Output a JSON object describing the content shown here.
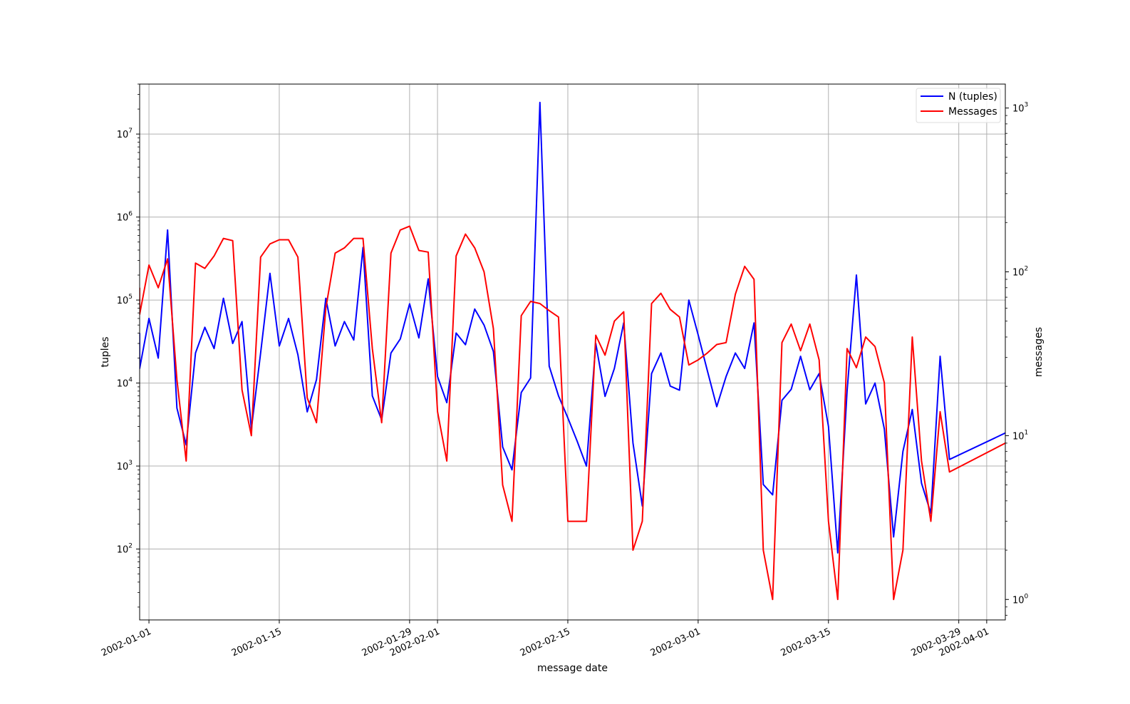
{
  "chart_data": {
    "type": "line",
    "xlabel": "message date",
    "ylabel": "tuples",
    "y2label": "messages",
    "y_scale": "log",
    "y2_scale": "log",
    "ylim": [
      14,
      40000000
    ],
    "y2lim": [
      0.75,
      1400
    ],
    "xlim": [
      "2001-12-31",
      "2002-04-03"
    ],
    "grid": true,
    "legend_position": "upper right",
    "x_ticks": [
      "2002-01-01",
      "2002-01-15",
      "2002-01-29",
      "2002-02-01",
      "2002-02-15",
      "2002-03-01",
      "2002-03-15",
      "2002-03-29",
      "2002-04-01"
    ],
    "y_ticks": [
      {
        "value": 100,
        "base": "10",
        "exp": "2"
      },
      {
        "value": 1000,
        "base": "10",
        "exp": "3"
      },
      {
        "value": 10000,
        "base": "10",
        "exp": "4"
      },
      {
        "value": 100000,
        "base": "10",
        "exp": "5"
      },
      {
        "value": 1000000,
        "base": "10",
        "exp": "6"
      },
      {
        "value": 10000000,
        "base": "10",
        "exp": "7"
      }
    ],
    "y2_ticks": [
      {
        "value": 1,
        "base": "10",
        "exp": "0"
      },
      {
        "value": 10,
        "base": "10",
        "exp": "1"
      },
      {
        "value": 100,
        "base": "10",
        "exp": "2"
      },
      {
        "value": 1000,
        "base": "10",
        "exp": "3"
      }
    ],
    "series": [
      {
        "name": "N (tuples)",
        "color": "#0000ff",
        "axis": "left",
        "points": [
          [
            "2001-12-31",
            40000
          ],
          [
            "2001-12-31",
            15000
          ],
          [
            "2002-01-01",
            60000
          ],
          [
            "2002-01-02",
            20000
          ],
          [
            "2002-01-03",
            700000
          ],
          [
            "2002-01-04",
            5000
          ],
          [
            "2002-01-05",
            1800
          ],
          [
            "2002-01-06",
            23000
          ],
          [
            "2002-01-07",
            47000
          ],
          [
            "2002-01-08",
            26000
          ],
          [
            "2002-01-09",
            105000
          ],
          [
            "2002-01-10",
            30000
          ],
          [
            "2002-01-11",
            55000
          ],
          [
            "2002-01-12",
            2800
          ],
          [
            "2002-01-13",
            23000
          ],
          [
            "2002-01-14",
            210000
          ],
          [
            "2002-01-15",
            28000
          ],
          [
            "2002-01-16",
            60000
          ],
          [
            "2002-01-17",
            22000
          ],
          [
            "2002-01-18",
            4500
          ],
          [
            "2002-01-19",
            11000
          ],
          [
            "2002-01-20",
            105000
          ],
          [
            "2002-01-21",
            28000
          ],
          [
            "2002-01-22",
            55000
          ],
          [
            "2002-01-23",
            33000
          ],
          [
            "2002-01-24",
            430000
          ],
          [
            "2002-01-25",
            7000
          ],
          [
            "2002-01-26",
            3600
          ],
          [
            "2002-01-27",
            23000
          ],
          [
            "2002-01-28",
            34000
          ],
          [
            "2002-01-29",
            90000
          ],
          [
            "2002-01-30",
            35000
          ],
          [
            "2002-01-31",
            180000
          ],
          [
            "2002-02-01",
            12000
          ],
          [
            "2002-02-02",
            5800
          ],
          [
            "2002-02-03",
            40000
          ],
          [
            "2002-02-04",
            29000
          ],
          [
            "2002-02-05",
            78000
          ],
          [
            "2002-02-06",
            50000
          ],
          [
            "2002-02-07",
            24000
          ],
          [
            "2002-02-08",
            1700
          ],
          [
            "2002-02-09",
            900
          ],
          [
            "2002-02-10",
            7700
          ],
          [
            "2002-02-11",
            11500
          ],
          [
            "2002-02-12",
            24000000
          ],
          [
            "2002-02-13",
            16000
          ],
          [
            "2002-02-14",
            7000
          ],
          [
            "2002-02-15",
            3800
          ],
          [
            "2002-02-16",
            2000
          ],
          [
            "2002-02-17",
            1000
          ],
          [
            "2002-02-18",
            30000
          ],
          [
            "2002-02-19",
            6900
          ],
          [
            "2002-02-20",
            15000
          ],
          [
            "2002-02-21",
            53000
          ],
          [
            "2002-02-22",
            1900
          ],
          [
            "2002-02-23",
            330
          ],
          [
            "2002-02-24",
            13000
          ],
          [
            "2002-02-25",
            23000
          ],
          [
            "2002-02-26",
            9200
          ],
          [
            "2002-02-27",
            8200
          ],
          [
            "2002-02-28",
            100000
          ],
          [
            "2002-03-01",
            38000
          ],
          [
            "2002-03-02",
            14000
          ],
          [
            "2002-03-03",
            5200
          ],
          [
            "2002-03-04",
            12000
          ],
          [
            "2002-03-05",
            23000
          ],
          [
            "2002-03-06",
            15000
          ],
          [
            "2002-03-07",
            53000
          ],
          [
            "2002-03-08",
            600
          ],
          [
            "2002-03-09",
            450
          ],
          [
            "2002-03-10",
            6200
          ],
          [
            "2002-03-11",
            8400
          ],
          [
            "2002-03-12",
            21000
          ],
          [
            "2002-03-13",
            8300
          ],
          [
            "2002-03-14",
            13000
          ],
          [
            "2002-03-15",
            3000
          ],
          [
            "2002-03-16",
            90
          ],
          [
            "2002-03-17",
            8000
          ],
          [
            "2002-03-18",
            200000
          ],
          [
            "2002-03-19",
            5600
          ],
          [
            "2002-03-20",
            10000
          ],
          [
            "2002-03-21",
            2800
          ],
          [
            "2002-03-22",
            140
          ],
          [
            "2002-03-23",
            1500
          ],
          [
            "2002-03-24",
            4800
          ],
          [
            "2002-03-25",
            620
          ],
          [
            "2002-03-26",
            270
          ],
          [
            "2002-03-27",
            21000
          ],
          [
            "2002-03-28",
            1200
          ],
          [
            "2002-04-03",
            2500
          ]
        ]
      },
      {
        "name": "Messages",
        "color": "#ff0000",
        "axis": "right",
        "points": [
          [
            "2001-12-31",
            80
          ],
          [
            "2001-12-31",
            55
          ],
          [
            "2002-01-01",
            110
          ],
          [
            "2002-01-02",
            80
          ],
          [
            "2002-01-03",
            120
          ],
          [
            "2002-01-04",
            22
          ],
          [
            "2002-01-05",
            7
          ],
          [
            "2002-01-06",
            113
          ],
          [
            "2002-01-07",
            105
          ],
          [
            "2002-01-08",
            125
          ],
          [
            "2002-01-09",
            160
          ],
          [
            "2002-01-10",
            155
          ],
          [
            "2002-01-11",
            19
          ],
          [
            "2002-01-12",
            10
          ],
          [
            "2002-01-13",
            123
          ],
          [
            "2002-01-14",
            148
          ],
          [
            "2002-01-15",
            157
          ],
          [
            "2002-01-16",
            157
          ],
          [
            "2002-01-17",
            123
          ],
          [
            "2002-01-18",
            17
          ],
          [
            "2002-01-19",
            12
          ],
          [
            "2002-01-20",
            60
          ],
          [
            "2002-01-21",
            130
          ],
          [
            "2002-01-22",
            140
          ],
          [
            "2002-01-23",
            160
          ],
          [
            "2002-01-24",
            160
          ],
          [
            "2002-01-25",
            34
          ],
          [
            "2002-01-26",
            12
          ],
          [
            "2002-01-27",
            130
          ],
          [
            "2002-01-28",
            180
          ],
          [
            "2002-01-29",
            190
          ],
          [
            "2002-01-30",
            135
          ],
          [
            "2002-01-31",
            132
          ],
          [
            "2002-02-01",
            14
          ],
          [
            "2002-02-02",
            7
          ],
          [
            "2002-02-03",
            125
          ],
          [
            "2002-02-04",
            170
          ],
          [
            "2002-02-05",
            140
          ],
          [
            "2002-02-06",
            100
          ],
          [
            "2002-02-07",
            45
          ],
          [
            "2002-02-08",
            5
          ],
          [
            "2002-02-09",
            3
          ],
          [
            "2002-02-10",
            54
          ],
          [
            "2002-02-11",
            66
          ],
          [
            "2002-02-12",
            64
          ],
          [
            "2002-02-13",
            58
          ],
          [
            "2002-02-14",
            53
          ],
          [
            "2002-02-15",
            3
          ],
          [
            "2002-02-16",
            3
          ],
          [
            "2002-02-17",
            3
          ],
          [
            "2002-02-18",
            41
          ],
          [
            "2002-02-19",
            31
          ],
          [
            "2002-02-20",
            50
          ],
          [
            "2002-02-21",
            57
          ],
          [
            "2002-02-22",
            2
          ],
          [
            "2002-02-23",
            3
          ],
          [
            "2002-02-24",
            64
          ],
          [
            "2002-02-25",
            74
          ],
          [
            "2002-02-26",
            59
          ],
          [
            "2002-02-27",
            53
          ],
          [
            "2002-02-28",
            27
          ],
          [
            "2002-03-01",
            29
          ],
          [
            "2002-03-02",
            32
          ],
          [
            "2002-03-03",
            36
          ],
          [
            "2002-03-04",
            37
          ],
          [
            "2002-03-05",
            73
          ],
          [
            "2002-03-06",
            108
          ],
          [
            "2002-03-07",
            90
          ],
          [
            "2002-03-08",
            2
          ],
          [
            "2002-03-09",
            1
          ],
          [
            "2002-03-10",
            37
          ],
          [
            "2002-03-11",
            48
          ],
          [
            "2002-03-12",
            33
          ],
          [
            "2002-03-13",
            48
          ],
          [
            "2002-03-14",
            29
          ],
          [
            "2002-03-15",
            3
          ],
          [
            "2002-03-16",
            1
          ],
          [
            "2002-03-17",
            34
          ],
          [
            "2002-03-18",
            26
          ],
          [
            "2002-03-19",
            40
          ],
          [
            "2002-03-20",
            35
          ],
          [
            "2002-03-21",
            21
          ],
          [
            "2002-03-22",
            1
          ],
          [
            "2002-03-23",
            2
          ],
          [
            "2002-03-24",
            40
          ],
          [
            "2002-03-25",
            7
          ],
          [
            "2002-03-26",
            3
          ],
          [
            "2002-03-27",
            14
          ],
          [
            "2002-03-28",
            6
          ],
          [
            "2002-04-03",
            9
          ]
        ]
      }
    ]
  }
}
